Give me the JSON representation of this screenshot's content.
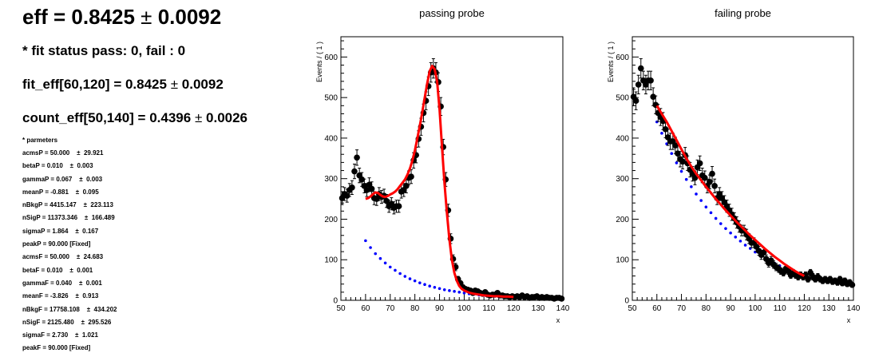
{
  "eff_title": {
    "text": "eff = 0.8425",
    "pm": "±",
    "err": "0.0092"
  },
  "fit_status": "* fit status pass: 0, fail : 0",
  "fit_eff": {
    "text": "fit_eff[60,120] = 0.8425",
    "pm": "±",
    "err": "0.0092"
  },
  "count_eff": {
    "text": "count_eff[50,140] = 0.4396",
    "pm": "±",
    "err": "0.0026"
  },
  "params_header": "* parmeters",
  "params": [
    {
      "name": "acmsP = 50.000",
      "err": "±  29.921"
    },
    {
      "name": "betaP = 0.010",
      "err": "±  0.003"
    },
    {
      "name": "gammaP = 0.067",
      "err": "±  0.003"
    },
    {
      "name": "meanP = -0.881",
      "err": "±  0.095"
    },
    {
      "name": "nBkgP = 4415.147",
      "err": "±  223.113"
    },
    {
      "name": "nSigP = 11373.346",
      "err": "±  166.489"
    },
    {
      "name": "sigmaP = 1.864",
      "err": "±  0.167"
    },
    {
      "name": "peakP = 90.000 [Fixed]",
      "err": ""
    },
    {
      "name": "acmsF = 50.000",
      "err": "±  24.683"
    },
    {
      "name": "betaF = 0.010",
      "err": "±  0.001"
    },
    {
      "name": "gammaF = 0.040",
      "err": "±  0.001"
    },
    {
      "name": "meanF = -3.826",
      "err": "±  0.913"
    },
    {
      "name": "nBkgF = 17758.108",
      "err": "±  434.202"
    },
    {
      "name": "nSigF = 2125.480",
      "err": "±  295.526"
    },
    {
      "name": "sigmaF = 2.730",
      "err": "±  1.021"
    },
    {
      "name": "peakF = 90.000 [Fixed]",
      "err": ""
    }
  ],
  "colors": {
    "data": "#000000",
    "fit": "#ff0000",
    "background": "#0000ff"
  },
  "chart_data": [
    {
      "type": "scatter",
      "title": "passing probe",
      "xlabel": "x",
      "ylabel": "Events / ( 1 )",
      "xlim": [
        50,
        140
      ],
      "ylim": [
        0,
        650
      ],
      "xticks": [
        50,
        60,
        70,
        80,
        90,
        100,
        110,
        120,
        130,
        140
      ],
      "yticks": [
        0,
        100,
        200,
        300,
        400,
        500,
        600
      ],
      "series": [
        {
          "kind": "data",
          "x": [
            50.5,
            51.5,
            52.5,
            53.5,
            54.5,
            55.5,
            56.5,
            57.5,
            58.5,
            59.5,
            60.5,
            61.5,
            62.5,
            63.5,
            64.5,
            65.5,
            66.5,
            67.5,
            68.5,
            69.5,
            70.5,
            71.5,
            72.5,
            73.5,
            74.5,
            75.5,
            76.5,
            77.5,
            78.5,
            79.5,
            80.5,
            81.5,
            82.5,
            83.5,
            84.5,
            85.5,
            86.5,
            87.5,
            88.5,
            89.5,
            90.5,
            91.5,
            92.5,
            93.5,
            94.5,
            95.5,
            96.5,
            97.5,
            98.5,
            99.5,
            100.5,
            101.5,
            102.5,
            103.5,
            104.5,
            105.5,
            106.5,
            107.5,
            108.5,
            109.5,
            110.5,
            111.5,
            112.5,
            113.5,
            114.5,
            115.5,
            116.5,
            117.5,
            118.5,
            119.5,
            120.5,
            121.5,
            122.5,
            123.5,
            124.5,
            125.5,
            126.5,
            127.5,
            128.5,
            129.5,
            130.5,
            131.5,
            132.5,
            133.5,
            134.5,
            135.5,
            136.5,
            137.5,
            138.5,
            139.5
          ],
          "y": [
            252,
            262,
            258,
            272,
            278,
            318,
            352,
            308,
            298,
            282,
            272,
            285,
            275,
            252,
            250,
            262,
            255,
            258,
            245,
            232,
            238,
            228,
            232,
            232,
            268,
            272,
            282,
            302,
            305,
            345,
            358,
            398,
            428,
            462,
            492,
            528,
            562,
            572,
            562,
            538,
            478,
            378,
            298,
            222,
            152,
            102,
            82,
            52,
            42,
            32,
            28,
            26,
            24,
            18,
            24,
            22,
            18,
            16,
            20,
            14,
            12,
            14,
            14,
            18,
            12,
            12,
            10,
            10,
            8,
            10,
            8,
            10,
            8,
            12,
            8,
            10,
            6,
            8,
            8,
            10,
            6,
            8,
            6,
            8,
            6,
            6,
            4,
            6,
            6,
            4
          ],
          "yerr": [
            16,
            16,
            16,
            16,
            17,
            18,
            19,
            18,
            17,
            17,
            16,
            17,
            17,
            16,
            16,
            16,
            16,
            16,
            16,
            15,
            15,
            15,
            15,
            15,
            16,
            16,
            17,
            17,
            17,
            19,
            19,
            20,
            21,
            22,
            22,
            23,
            24,
            24,
            24,
            23,
            22,
            19,
            17,
            15,
            12,
            10,
            9,
            7,
            6,
            6,
            5,
            5,
            5,
            4,
            5,
            5,
            4,
            4,
            4,
            4,
            3,
            4,
            4,
            4,
            3,
            3,
            3,
            3,
            3,
            3,
            3,
            3,
            3,
            3,
            3,
            3,
            2,
            3,
            3,
            3,
            2,
            3,
            2,
            3,
            2,
            2,
            2,
            2,
            2,
            2
          ]
        },
        {
          "kind": "fit",
          "x": [
            60,
            61,
            62,
            63,
            64,
            65,
            66,
            67,
            68,
            69,
            70,
            71,
            72,
            73,
            74,
            75,
            76,
            77,
            78,
            79,
            80,
            81,
            82,
            83,
            84,
            85,
            86,
            87,
            88,
            89,
            90,
            91,
            92,
            93,
            94,
            95,
            96,
            97,
            98,
            99,
            100,
            102,
            104,
            106,
            108,
            110,
            112,
            114,
            116,
            118,
            120
          ],
          "y": [
            250,
            252,
            256,
            262,
            266,
            265,
            260,
            256,
            255,
            257,
            261,
            264,
            268,
            274,
            282,
            290,
            298,
            310,
            325,
            345,
            370,
            400,
            430,
            463,
            500,
            535,
            565,
            578,
            570,
            540,
            470,
            380,
            290,
            215,
            150,
            100,
            68,
            48,
            35,
            28,
            24,
            19,
            16,
            14,
            12,
            11,
            10,
            10,
            9,
            9,
            8
          ]
        },
        {
          "kind": "background",
          "x": [
            60,
            62,
            64,
            66,
            68,
            70,
            72,
            74,
            76,
            78,
            80,
            82,
            84,
            86,
            88,
            90,
            92,
            94,
            96,
            98,
            100,
            102,
            104,
            106,
            108,
            110,
            112,
            114,
            116,
            118,
            120
          ],
          "y": [
            147,
            130,
            115,
            103,
            92,
            82,
            74,
            66,
            59,
            53,
            48,
            43,
            39,
            35,
            32,
            29,
            26,
            24,
            22,
            20,
            18,
            16,
            15,
            13,
            12,
            11,
            10,
            9,
            8,
            7,
            7
          ]
        }
      ]
    },
    {
      "type": "scatter",
      "title": "failing probe",
      "xlabel": "x",
      "ylabel": "Events / ( 1 )",
      "xlim": [
        50,
        140
      ],
      "ylim": [
        0,
        650
      ],
      "xticks": [
        50,
        60,
        70,
        80,
        90,
        100,
        110,
        120,
        130,
        140
      ],
      "yticks": [
        0,
        100,
        200,
        300,
        400,
        500,
        600
      ],
      "series": [
        {
          "kind": "data",
          "x": [
            50.5,
            51.5,
            52.5,
            53.5,
            54.5,
            55.5,
            56.5,
            57.5,
            58.5,
            59.5,
            60.5,
            61.5,
            62.5,
            63.5,
            64.5,
            65.5,
            66.5,
            67.5,
            68.5,
            69.5,
            70.5,
            71.5,
            72.5,
            73.5,
            74.5,
            75.5,
            76.5,
            77.5,
            78.5,
            79.5,
            80.5,
            81.5,
            82.5,
            83.5,
            84.5,
            85.5,
            86.5,
            87.5,
            88.5,
            89.5,
            90.5,
            91.5,
            92.5,
            93.5,
            94.5,
            95.5,
            96.5,
            97.5,
            98.5,
            99.5,
            100.5,
            101.5,
            102.5,
            103.5,
            104.5,
            105.5,
            106.5,
            107.5,
            108.5,
            109.5,
            110.5,
            111.5,
            112.5,
            113.5,
            114.5,
            115.5,
            116.5,
            117.5,
            118.5,
            119.5,
            120.5,
            121.5,
            122.5,
            123.5,
            124.5,
            125.5,
            126.5,
            127.5,
            128.5,
            129.5,
            130.5,
            131.5,
            132.5,
            133.5,
            134.5,
            135.5,
            136.5,
            137.5,
            138.5,
            139.5
          ],
          "y": [
            502,
            492,
            532,
            572,
            542,
            532,
            542,
            542,
            502,
            482,
            462,
            452,
            442,
            422,
            402,
            392,
            392,
            382,
            362,
            348,
            342,
            358,
            338,
            322,
            312,
            302,
            328,
            338,
            308,
            302,
            282,
            292,
            312,
            282,
            252,
            262,
            252,
            242,
            232,
            222,
            212,
            202,
            192,
            182,
            172,
            172,
            162,
            152,
            142,
            142,
            132,
            122,
            112,
            118,
            102,
            92,
            98,
            88,
            82,
            78,
            72,
            68,
            78,
            72,
            62,
            68,
            62,
            58,
            62,
            58,
            62,
            52,
            68,
            58,
            52,
            58,
            52,
            48,
            52,
            48,
            52,
            46,
            48,
            44,
            52,
            42,
            48,
            40,
            44,
            38
          ],
          "yerr": [
            22,
            22,
            23,
            24,
            23,
            23,
            23,
            23,
            22,
            22,
            21,
            21,
            21,
            21,
            20,
            20,
            20,
            20,
            19,
            19,
            18,
            19,
            18,
            18,
            18,
            17,
            18,
            18,
            18,
            17,
            17,
            17,
            18,
            17,
            16,
            16,
            16,
            16,
            15,
            15,
            15,
            14,
            14,
            14,
            13,
            13,
            13,
            12,
            12,
            12,
            11,
            11,
            11,
            11,
            10,
            10,
            10,
            9,
            9,
            9,
            8,
            8,
            9,
            8,
            8,
            8,
            8,
            8,
            8,
            8,
            8,
            7,
            8,
            8,
            7,
            8,
            7,
            7,
            7,
            7,
            7,
            7,
            7,
            7,
            7,
            6,
            7,
            6,
            7,
            6
          ]
        },
        {
          "kind": "fit",
          "x": [
            60,
            62,
            64,
            66,
            68,
            70,
            72,
            74,
            76,
            78,
            80,
            82,
            84,
            86,
            88,
            90,
            92,
            94,
            96,
            98,
            100,
            102,
            104,
            106,
            108,
            110,
            112,
            114,
            116,
            118,
            120
          ],
          "y": [
            480,
            460,
            440,
            418,
            395,
            372,
            350,
            330,
            312,
            296,
            280,
            265,
            250,
            236,
            222,
            209,
            196,
            184,
            172,
            160,
            149,
            138,
            127,
            117,
            107,
            98,
            89,
            81,
            73,
            66,
            60
          ]
        },
        {
          "kind": "background",
          "x": [
            60,
            62,
            64,
            66,
            68,
            70,
            72,
            74,
            76,
            78,
            80,
            82,
            84,
            86,
            88,
            90,
            92,
            94,
            96,
            98,
            100,
            102,
            104,
            106,
            108,
            110,
            112,
            114,
            116,
            118,
            120
          ],
          "y": [
            440,
            412,
            386,
            362,
            339,
            318,
            298,
            280,
            262,
            246,
            230,
            216,
            202,
            189,
            177,
            166,
            156,
            146,
            136,
            128,
            119,
            112,
            104,
            97,
            91,
            85,
            80,
            74,
            69,
            65,
            61
          ]
        }
      ]
    }
  ]
}
